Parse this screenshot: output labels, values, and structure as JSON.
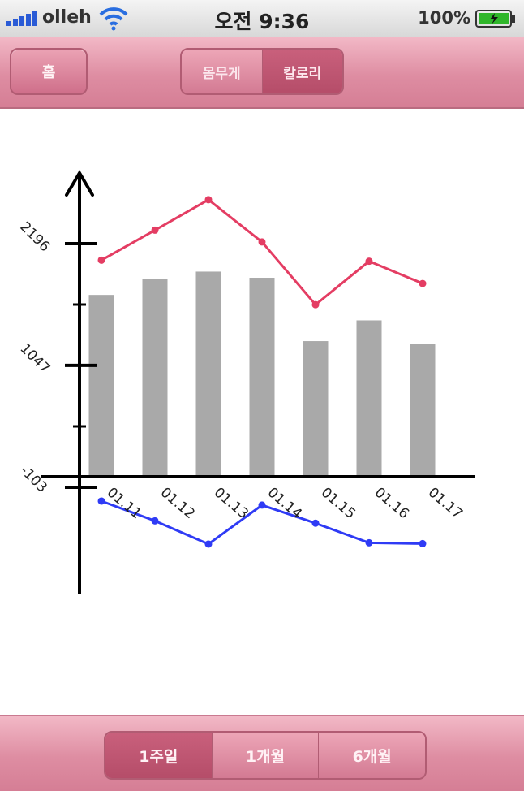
{
  "status_bar": {
    "carrier": "olleh",
    "time": "오전 9:36",
    "battery": "100%"
  },
  "nav": {
    "home_label": "홈",
    "segments": [
      {
        "label": "몸무게",
        "active": false
      },
      {
        "label": "칼로리",
        "active": true
      }
    ]
  },
  "period": {
    "segments": [
      {
        "label": "1주일",
        "active": true
      },
      {
        "label": "1개월",
        "active": false
      },
      {
        "label": "6개월",
        "active": false
      }
    ]
  },
  "colors": {
    "accent": "#e07f99",
    "bar": "#a9a9a9",
    "line_top": "#e43d63",
    "line_bottom": "#2f3bf5"
  },
  "chart_data": {
    "type": "bar",
    "categories": [
      "01.11",
      "01.12",
      "01.13",
      "01.14",
      "01.15",
      "01.16",
      "01.17"
    ],
    "y_ticks": [
      "2196",
      "1047",
      "-103"
    ],
    "y_tick_values": [
      2196,
      1047,
      -103
    ],
    "ylim": [
      -103,
      2196
    ],
    "series": [
      {
        "kind": "bar",
        "values": [
          1712,
          1864,
          1932,
          1874,
          1276,
          1472,
          1253
        ]
      },
      {
        "kind": "line",
        "color": "line_top",
        "values": [
          2040,
          2323,
          2611,
          2212,
          1620,
          2030,
          1820
        ]
      },
      {
        "kind": "line",
        "color": "line_bottom",
        "values": [
          -233,
          -420,
          -639,
          -271,
          -442,
          -627,
          -635
        ]
      }
    ]
  }
}
